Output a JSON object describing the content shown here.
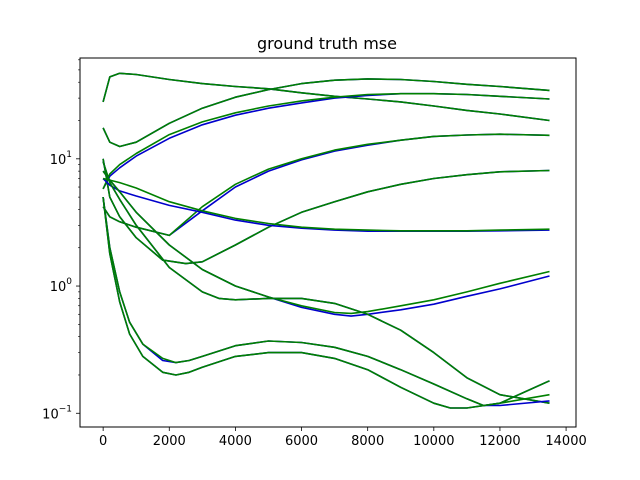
{
  "chart_data": {
    "type": "line",
    "title": "ground truth mse",
    "xlabel": "",
    "ylabel": "",
    "xlim": [
      -700,
      14300
    ],
    "ylim": [
      0.078,
      62
    ],
    "yscale": "log",
    "grid": false,
    "legend": "none",
    "x_ticks": [
      0,
      2000,
      4000,
      6000,
      8000,
      10000,
      12000,
      14000
    ],
    "x_tick_labels": [
      "0",
      "2000",
      "4000",
      "6000",
      "8000",
      "10000",
      "12000",
      "14000"
    ],
    "y_ticks": [
      0.1,
      1,
      10
    ],
    "y_minor_ticks": [
      0.2,
      0.3,
      0.4,
      0.5,
      0.6,
      0.7,
      0.8,
      0.9,
      2,
      3,
      4,
      5,
      6,
      7,
      8,
      9,
      20,
      30,
      40,
      50,
      60
    ],
    "colors": {
      "series_a": "#0000cc",
      "series_b": "#008000"
    },
    "curves": [
      {
        "x": [
          0,
          200,
          500,
          1000,
          2000,
          3000,
          4000,
          5000,
          6000,
          7000,
          8000,
          9000,
          10000,
          11000,
          12000,
          13500
        ],
        "a": [
          28,
          44,
          47,
          46,
          42,
          39,
          37,
          35.5,
          33,
          31,
          29.5,
          28,
          26,
          24,
          22.5,
          20
        ],
        "b": [
          28,
          44,
          47,
          46,
          42,
          39,
          37,
          35.5,
          33,
          31,
          29.5,
          28,
          26,
          24,
          22.5,
          20
        ]
      },
      {
        "x": [
          0,
          200,
          500,
          1000,
          2000,
          3000,
          4000,
          5000,
          6000,
          7000,
          8000,
          9000,
          10000,
          11000,
          12000,
          13500
        ],
        "a": [
          17.5,
          13.5,
          12.5,
          13.5,
          19,
          25,
          30.5,
          35,
          39,
          41.5,
          42.5,
          42,
          40.5,
          38.5,
          37,
          34.5
        ],
        "b": [
          17.5,
          13.5,
          12.5,
          13.5,
          19,
          25,
          30.5,
          35,
          39,
          41.5,
          42.5,
          42,
          40.5,
          38.5,
          37,
          34.5
        ]
      },
      {
        "x": [
          0,
          200,
          500,
          1000,
          2000,
          3000,
          4000,
          5000,
          6000,
          7000,
          8000,
          9000,
          10000,
          11000,
          12000,
          13500
        ],
        "a": [
          5.8,
          7.3,
          8.5,
          10.5,
          14.5,
          18.5,
          22,
          25,
          27.5,
          30,
          31.5,
          32.5,
          32.5,
          32,
          31,
          29.5
        ],
        "b": [
          5.8,
          7.6,
          9,
          11,
          15.5,
          19.5,
          23,
          26,
          28.5,
          30.5,
          32,
          32.5,
          32.5,
          32,
          31,
          29.5
        ]
      },
      {
        "x": [
          0,
          200,
          500,
          1000,
          2000,
          3000,
          4000,
          5000,
          6000,
          7000,
          8000,
          9000,
          10000,
          11000,
          12000,
          13500
        ],
        "a": [
          4.2,
          3.5,
          3.2,
          2.9,
          2.5,
          3.9,
          6,
          8,
          9.8,
          11.5,
          12.8,
          14,
          15,
          15.4,
          15.6,
          15.3
        ],
        "b": [
          4.2,
          3.5,
          3.2,
          2.9,
          2.5,
          4.2,
          6.3,
          8.3,
          10,
          11.7,
          13,
          14,
          15,
          15.4,
          15.6,
          15.3
        ]
      },
      {
        "x": [
          0,
          200,
          500,
          1000,
          1800,
          2500,
          3000,
          4000,
          5000,
          6000,
          7000,
          8000,
          9000,
          10000,
          11000,
          12000,
          13500
        ],
        "a": [
          10,
          5,
          3.5,
          2.4,
          1.6,
          1.5,
          1.55,
          2.1,
          2.9,
          3.8,
          4.6,
          5.5,
          6.3,
          7,
          7.5,
          7.9,
          8.1
        ],
        "b": [
          10,
          5,
          3.5,
          2.4,
          1.6,
          1.5,
          1.55,
          2.1,
          2.9,
          3.8,
          4.6,
          5.5,
          6.3,
          7,
          7.5,
          7.9,
          8.1
        ]
      },
      {
        "x": [
          0,
          200,
          500,
          1000,
          2000,
          3000,
          4000,
          5000,
          6000,
          7000,
          8000,
          9000,
          10000,
          11000,
          12000,
          13500
        ],
        "a": [
          7,
          6.2,
          5.6,
          5.1,
          4.3,
          3.8,
          3.3,
          3,
          2.85,
          2.75,
          2.7,
          2.7,
          2.7,
          2.7,
          2.72,
          2.75
        ],
        "b": [
          7,
          6.8,
          6.5,
          5.9,
          4.6,
          3.9,
          3.4,
          3.1,
          2.9,
          2.8,
          2.75,
          2.72,
          2.72,
          2.72,
          2.75,
          2.8
        ]
      },
      {
        "x": [
          0,
          200,
          500,
          1000,
          2000,
          3000,
          4000,
          5000,
          6000,
          7000,
          7500,
          8000,
          9000,
          10000,
          11000,
          12000,
          13500
        ],
        "a": [
          8,
          6.8,
          5.5,
          3.8,
          2.1,
          1.35,
          1.0,
          0.82,
          0.68,
          0.6,
          0.58,
          0.6,
          0.65,
          0.72,
          0.83,
          0.95,
          1.2
        ],
        "b": [
          8,
          6.8,
          5.5,
          3.8,
          2.1,
          1.35,
          1.0,
          0.82,
          0.7,
          0.62,
          0.61,
          0.63,
          0.7,
          0.78,
          0.9,
          1.05,
          1.3
        ]
      },
      {
        "x": [
          0,
          200,
          500,
          1000,
          2000,
          3000,
          3500,
          4000,
          5000,
          6000,
          7000,
          8000,
          9000,
          10000,
          11000,
          12000,
          13500
        ],
        "a": [
          9.5,
          6.5,
          4.8,
          3,
          1.4,
          0.9,
          0.8,
          0.78,
          0.8,
          0.8,
          0.73,
          0.6,
          0.45,
          0.3,
          0.19,
          0.14,
          0.12
        ],
        "b": [
          9.5,
          6.5,
          4.8,
          3,
          1.4,
          0.9,
          0.8,
          0.78,
          0.8,
          0.8,
          0.73,
          0.6,
          0.45,
          0.3,
          0.19,
          0.14,
          0.12
        ]
      },
      {
        "x": [
          0,
          200,
          500,
          800,
          1200,
          1800,
          2200,
          2600,
          3000,
          4000,
          5000,
          6000,
          7000,
          8000,
          9000,
          10000,
          11000,
          11500,
          12000,
          13500
        ],
        "a": [
          5,
          2,
          0.9,
          0.52,
          0.35,
          0.26,
          0.25,
          0.26,
          0.28,
          0.34,
          0.37,
          0.36,
          0.33,
          0.28,
          0.22,
          0.17,
          0.13,
          0.115,
          0.115,
          0.125
        ],
        "b": [
          5,
          2,
          0.9,
          0.52,
          0.35,
          0.27,
          0.25,
          0.26,
          0.28,
          0.34,
          0.37,
          0.36,
          0.33,
          0.28,
          0.22,
          0.17,
          0.13,
          0.115,
          0.12,
          0.14
        ]
      },
      {
        "x": [
          0,
          200,
          500,
          800,
          1200,
          1800,
          2200,
          2600,
          3000,
          4000,
          5000,
          6000,
          7000,
          8000,
          9000,
          10000,
          10500,
          11000,
          12000,
          13500
        ],
        "a": [
          5,
          1.8,
          0.75,
          0.42,
          0.28,
          0.21,
          0.2,
          0.21,
          0.23,
          0.28,
          0.3,
          0.3,
          0.27,
          0.22,
          0.16,
          0.12,
          0.11,
          0.11,
          0.12,
          0.18
        ],
        "b": [
          5,
          1.8,
          0.75,
          0.42,
          0.28,
          0.21,
          0.2,
          0.21,
          0.23,
          0.28,
          0.3,
          0.3,
          0.27,
          0.22,
          0.16,
          0.12,
          0.11,
          0.11,
          0.12,
          0.18
        ]
      }
    ]
  }
}
